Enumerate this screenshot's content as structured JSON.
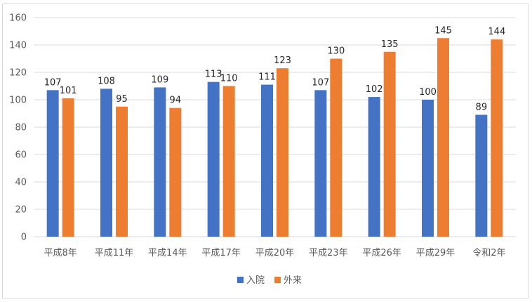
{
  "chart_data": {
    "type": "bar",
    "categories": [
      "平成8年",
      "平成11年",
      "平成14年",
      "平成17年",
      "平成20年",
      "平成23年",
      "平成26年",
      "平成29年",
      "令和2年"
    ],
    "series": [
      {
        "name": "入院",
        "color": "#4472c4",
        "values": [
          107,
          108,
          109,
          113,
          111,
          107,
          102,
          100,
          89
        ]
      },
      {
        "name": "外来",
        "color": "#ed7d31",
        "values": [
          101,
          95,
          94,
          110,
          123,
          130,
          135,
          145,
          144
        ]
      }
    ],
    "yticks": [
      "0",
      "20",
      "40",
      "60",
      "80",
      "100",
      "120",
      "140",
      "160"
    ],
    "ylim": [
      0,
      160
    ],
    "grid": true,
    "legend": "bottom"
  }
}
